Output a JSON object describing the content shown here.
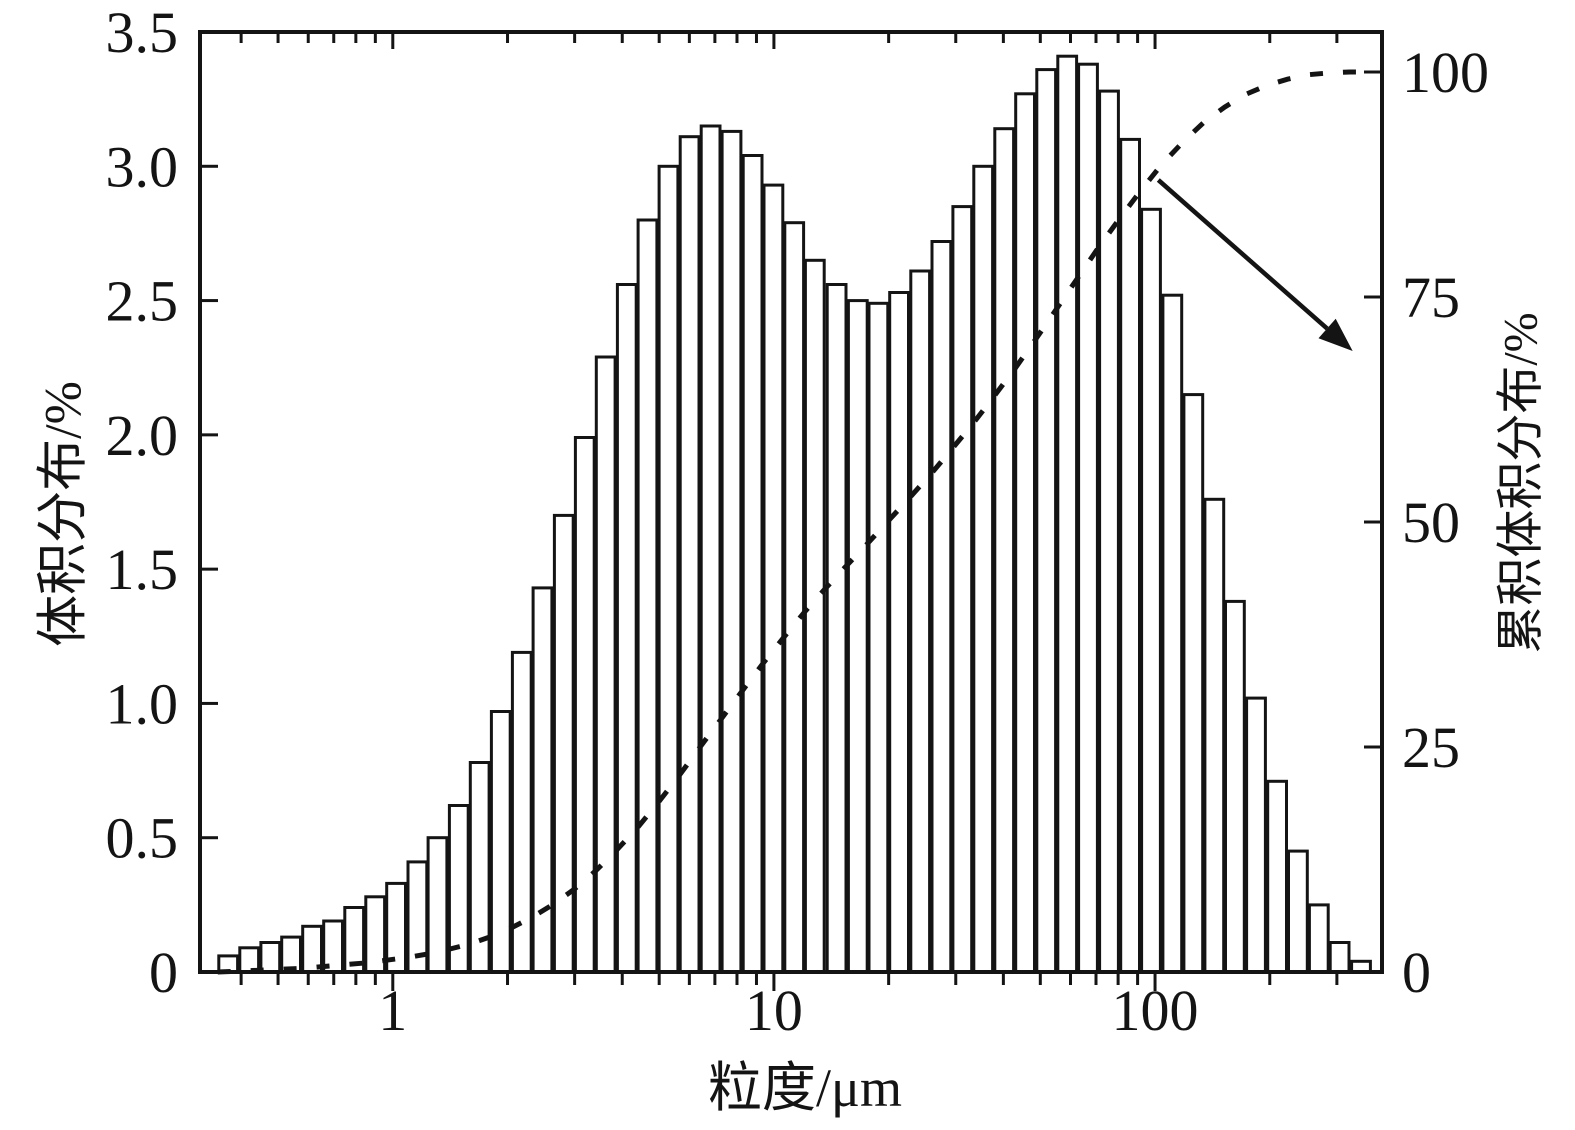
{
  "figure": {
    "background": "#ffffff",
    "ink_color": "#141414"
  },
  "chart_data": {
    "type": "bar",
    "title": "",
    "xlabel": "粒度/μm",
    "ylabel_left": "体积分布/%",
    "ylabel_right": "累积体积分布/%",
    "x_scale": "log",
    "x_range_um": [
      0.312,
      394
    ],
    "y_left_range": [
      0,
      3.5
    ],
    "y_right_range": [
      0,
      100
    ],
    "grid": "off",
    "legend": "none",
    "x_major_ticks": [
      1,
      10,
      100
    ],
    "x_major_tick_labels": [
      "1",
      "10",
      "100"
    ],
    "x_minor_ticks": [
      0.4,
      0.5,
      0.6,
      0.7,
      0.8,
      0.9,
      2,
      3,
      4,
      5,
      6,
      7,
      8,
      9,
      20,
      30,
      40,
      50,
      60,
      70,
      80,
      90,
      200,
      300
    ],
    "y_left_ticks": [
      0,
      0.5,
      1.0,
      1.5,
      2.0,
      2.5,
      3.0,
      3.5
    ],
    "y_left_tick_labels": [
      "0",
      "0.5",
      "1.0",
      "1.5",
      "2.0",
      "2.5",
      "3.0",
      "3.5"
    ],
    "y_right_ticks": [
      0,
      25,
      50,
      75,
      100
    ],
    "y_right_tick_labels": [
      "0",
      "25",
      "50",
      "75",
      "100"
    ],
    "bar_fill": "#ffffff",
    "bar_stroke": "#141414",
    "line_style": "dashed",
    "categories_sizes_um": [
      0.37,
      0.42,
      0.477,
      0.541,
      0.614,
      0.697,
      0.792,
      0.899,
      1.02,
      1.16,
      1.31,
      1.49,
      1.69,
      1.92,
      2.18,
      2.47,
      2.81,
      3.19,
      3.62,
      4.11,
      4.66,
      5.29,
      6.01,
      6.82,
      7.74,
      8.79,
      9.97,
      11.3,
      12.8,
      14.6,
      16.6,
      18.8,
      21.3,
      24.2,
      27.5,
      31.2,
      35.4,
      40.2,
      45.6,
      51.8,
      58.8,
      66.7,
      75.7,
      86.0,
      97.6,
      111,
      126,
      143,
      162,
      184,
      209,
      237,
      269,
      305,
      347
    ],
    "series": [
      {
        "name": "体积分布",
        "type": "bar",
        "axis": "left",
        "values_pct": [
          0.06,
          0.09,
          0.11,
          0.13,
          0.17,
          0.19,
          0.24,
          0.28,
          0.33,
          0.41,
          0.5,
          0.62,
          0.78,
          0.97,
          1.19,
          1.43,
          1.7,
          1.99,
          2.29,
          2.56,
          2.8,
          3.0,
          3.11,
          3.15,
          3.13,
          3.04,
          2.93,
          2.79,
          2.65,
          2.56,
          2.5,
          2.49,
          2.53,
          2.61,
          2.72,
          2.85,
          3.0,
          3.14,
          3.27,
          3.36,
          3.41,
          3.38,
          3.28,
          3.1,
          2.84,
          2.52,
          2.15,
          1.76,
          1.38,
          1.02,
          0.71,
          0.45,
          0.25,
          0.11,
          0.04
        ]
      },
      {
        "name": "累积体积分布",
        "type": "line",
        "axis": "right",
        "style": "dashed",
        "values_pct": [
          0.1,
          0.2,
          0.3,
          0.4,
          0.6,
          0.8,
          1.0,
          1.3,
          1.6,
          2.0,
          2.5,
          3.1,
          3.9,
          4.9,
          6.1,
          7.5,
          9.2,
          11.2,
          13.5,
          16.0,
          18.8,
          21.8,
          25.0,
          28.1,
          31.2,
          34.3,
          37.2,
          40.0,
          42.6,
          45.2,
          47.7,
          50.2,
          52.7,
          55.3,
          58.1,
          60.9,
          63.9,
          67.0,
          70.3,
          73.7,
          77.1,
          80.5,
          83.7,
          86.8,
          89.7,
          92.2,
          94.4,
          96.1,
          97.5,
          98.5,
          99.2,
          99.7,
          99.9,
          100,
          100
        ]
      }
    ],
    "annotation_arrow": {
      "from": {
        "size_um": 102,
        "cum_pct": 88
      },
      "to": {
        "size_um": 330,
        "cum_pct": 69
      }
    }
  }
}
